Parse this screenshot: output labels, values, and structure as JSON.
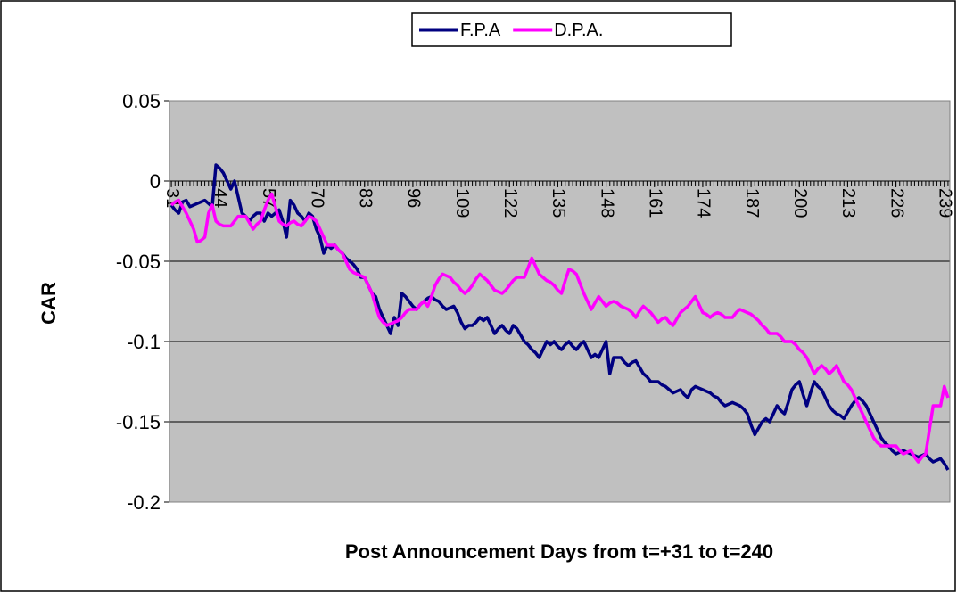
{
  "chart_data": {
    "type": "line",
    "xlabel": "Post Announcement Days from t=+31 to t=240",
    "ylabel": "CAR",
    "x": [
      31,
      32,
      33,
      34,
      35,
      36,
      37,
      38,
      39,
      40,
      41,
      42,
      43,
      44,
      45,
      46,
      47,
      48,
      49,
      50,
      51,
      52,
      53,
      54,
      55,
      56,
      57,
      58,
      59,
      60,
      61,
      62,
      63,
      64,
      65,
      66,
      67,
      68,
      69,
      70,
      71,
      72,
      73,
      74,
      75,
      76,
      77,
      78,
      79,
      80,
      81,
      82,
      83,
      84,
      85,
      86,
      87,
      88,
      89,
      90,
      91,
      92,
      93,
      94,
      95,
      96,
      97,
      98,
      99,
      100,
      101,
      102,
      103,
      104,
      105,
      106,
      107,
      108,
      109,
      110,
      111,
      112,
      113,
      114,
      115,
      116,
      117,
      118,
      119,
      120,
      121,
      122,
      123,
      124,
      125,
      126,
      127,
      128,
      129,
      130,
      131,
      132,
      133,
      134,
      135,
      136,
      137,
      138,
      139,
      140,
      141,
      142,
      143,
      144,
      145,
      146,
      147,
      148,
      149,
      150,
      151,
      152,
      153,
      154,
      155,
      156,
      157,
      158,
      159,
      160,
      161,
      162,
      163,
      164,
      165,
      166,
      167,
      168,
      169,
      170,
      171,
      172,
      173,
      174,
      175,
      176,
      177,
      178,
      179,
      180,
      181,
      182,
      183,
      184,
      185,
      186,
      187,
      188,
      189,
      190,
      191,
      192,
      193,
      194,
      195,
      196,
      197,
      198,
      199,
      200,
      201,
      202,
      203,
      204,
      205,
      206,
      207,
      208,
      209,
      210,
      211,
      212,
      213,
      214,
      215,
      216,
      217,
      218,
      219,
      220,
      221,
      222,
      223,
      224,
      225,
      226,
      227,
      228,
      229,
      230,
      231,
      232,
      233,
      234,
      235,
      236,
      237,
      238,
      239,
      240
    ],
    "series": [
      {
        "name": "F.P.A",
        "color": "#000080",
        "values": [
          -0.015,
          -0.018,
          -0.02,
          -0.013,
          -0.012,
          -0.016,
          -0.015,
          -0.014,
          -0.013,
          -0.012,
          -0.014,
          -0.016,
          0.01,
          0.008,
          0.005,
          0.0,
          -0.005,
          0.0,
          -0.01,
          -0.02,
          -0.022,
          -0.025,
          -0.022,
          -0.02,
          -0.02,
          -0.025,
          -0.02,
          -0.022,
          -0.02,
          -0.018,
          -0.025,
          -0.035,
          -0.012,
          -0.015,
          -0.02,
          -0.022,
          -0.025,
          -0.02,
          -0.022,
          -0.03,
          -0.035,
          -0.045,
          -0.04,
          -0.042,
          -0.04,
          -0.043,
          -0.045,
          -0.048,
          -0.05,
          -0.052,
          -0.055,
          -0.06,
          -0.06,
          -0.065,
          -0.07,
          -0.072,
          -0.08,
          -0.085,
          -0.09,
          -0.095,
          -0.085,
          -0.09,
          -0.07,
          -0.072,
          -0.075,
          -0.078,
          -0.08,
          -0.077,
          -0.075,
          -0.073,
          -0.072,
          -0.074,
          -0.075,
          -0.078,
          -0.08,
          -0.079,
          -0.078,
          -0.082,
          -0.088,
          -0.092,
          -0.09,
          -0.09,
          -0.088,
          -0.085,
          -0.087,
          -0.085,
          -0.09,
          -0.095,
          -0.092,
          -0.09,
          -0.093,
          -0.095,
          -0.09,
          -0.092,
          -0.096,
          -0.1,
          -0.102,
          -0.105,
          -0.107,
          -0.11,
          -0.105,
          -0.1,
          -0.102,
          -0.1,
          -0.103,
          -0.105,
          -0.102,
          -0.1,
          -0.103,
          -0.105,
          -0.102,
          -0.1,
          -0.105,
          -0.11,
          -0.108,
          -0.11,
          -0.105,
          -0.1,
          -0.12,
          -0.11,
          -0.11,
          -0.11,
          -0.113,
          -0.115,
          -0.113,
          -0.112,
          -0.116,
          -0.12,
          -0.122,
          -0.125,
          -0.125,
          -0.125,
          -0.127,
          -0.128,
          -0.13,
          -0.132,
          -0.131,
          -0.13,
          -0.133,
          -0.135,
          -0.13,
          -0.128,
          -0.129,
          -0.13,
          -0.131,
          -0.132,
          -0.134,
          -0.135,
          -0.138,
          -0.14,
          -0.139,
          -0.138,
          -0.139,
          -0.14,
          -0.142,
          -0.145,
          -0.152,
          -0.158,
          -0.154,
          -0.15,
          -0.148,
          -0.15,
          -0.145,
          -0.14,
          -0.143,
          -0.145,
          -0.138,
          -0.13,
          -0.127,
          -0.125,
          -0.133,
          -0.14,
          -0.132,
          -0.125,
          -0.128,
          -0.13,
          -0.135,
          -0.14,
          -0.143,
          -0.145,
          -0.146,
          -0.148,
          -0.144,
          -0.14,
          -0.137,
          -0.135,
          -0.137,
          -0.14,
          -0.145,
          -0.15,
          -0.155,
          -0.16,
          -0.163,
          -0.165,
          -0.168,
          -0.17,
          -0.169,
          -0.168,
          -0.169,
          -0.17,
          -0.171,
          -0.172,
          -0.171,
          -0.17,
          -0.173,
          -0.175,
          -0.174,
          -0.173,
          -0.176,
          -0.18
        ]
      },
      {
        "name": "D.P.A.",
        "color": "#ff00ff",
        "values": [
          -0.015,
          -0.013,
          -0.012,
          -0.016,
          -0.02,
          -0.025,
          -0.03,
          -0.038,
          -0.037,
          -0.035,
          -0.02,
          -0.015,
          -0.025,
          -0.027,
          -0.028,
          -0.028,
          -0.028,
          -0.025,
          -0.022,
          -0.022,
          -0.022,
          -0.026,
          -0.03,
          -0.027,
          -0.025,
          -0.018,
          -0.012,
          -0.008,
          -0.016,
          -0.025,
          -0.027,
          -0.028,
          -0.026,
          -0.025,
          -0.027,
          -0.028,
          -0.025,
          -0.022,
          -0.023,
          -0.025,
          -0.03,
          -0.035,
          -0.04,
          -0.04,
          -0.04,
          -0.043,
          -0.045,
          -0.05,
          -0.055,
          -0.057,
          -0.058,
          -0.059,
          -0.06,
          -0.065,
          -0.07,
          -0.078,
          -0.085,
          -0.088,
          -0.09,
          -0.089,
          -0.088,
          -0.087,
          -0.085,
          -0.082,
          -0.08,
          -0.08,
          -0.08,
          -0.077,
          -0.075,
          -0.078,
          -0.072,
          -0.065,
          -0.061,
          -0.058,
          -0.059,
          -0.06,
          -0.063,
          -0.065,
          -0.068,
          -0.07,
          -0.068,
          -0.065,
          -0.061,
          -0.058,
          -0.06,
          -0.062,
          -0.065,
          -0.068,
          -0.069,
          -0.07,
          -0.068,
          -0.065,
          -0.062,
          -0.06,
          -0.06,
          -0.06,
          -0.054,
          -0.048,
          -0.053,
          -0.058,
          -0.06,
          -0.062,
          -0.063,
          -0.065,
          -0.068,
          -0.07,
          -0.062,
          -0.055,
          -0.056,
          -0.058,
          -0.064,
          -0.07,
          -0.075,
          -0.08,
          -0.076,
          -0.072,
          -0.075,
          -0.078,
          -0.076,
          -0.075,
          -0.076,
          -0.078,
          -0.079,
          -0.08,
          -0.082,
          -0.085,
          -0.081,
          -0.078,
          -0.08,
          -0.082,
          -0.085,
          -0.088,
          -0.086,
          -0.085,
          -0.088,
          -0.09,
          -0.086,
          -0.082,
          -0.08,
          -0.078,
          -0.075,
          -0.072,
          -0.077,
          -0.082,
          -0.083,
          -0.085,
          -0.083,
          -0.082,
          -0.083,
          -0.085,
          -0.085,
          -0.085,
          -0.082,
          -0.08,
          -0.081,
          -0.082,
          -0.083,
          -0.085,
          -0.087,
          -0.09,
          -0.092,
          -0.095,
          -0.095,
          -0.095,
          -0.097,
          -0.1,
          -0.1,
          -0.1,
          -0.102,
          -0.105,
          -0.107,
          -0.11,
          -0.115,
          -0.12,
          -0.117,
          -0.115,
          -0.117,
          -0.12,
          -0.118,
          -0.115,
          -0.12,
          -0.125,
          -0.127,
          -0.13,
          -0.135,
          -0.14,
          -0.145,
          -0.15,
          -0.155,
          -0.16,
          -0.163,
          -0.165,
          -0.165,
          -0.165,
          -0.165,
          -0.165,
          -0.168,
          -0.17,
          -0.169,
          -0.168,
          -0.172,
          -0.175,
          -0.172,
          -0.17,
          -0.155,
          -0.14,
          -0.14,
          -0.14,
          -0.128,
          -0.135
        ]
      }
    ],
    "xlim": [
      30.5,
      240.5
    ],
    "xticks": [
      31,
      44,
      57,
      70,
      83,
      96,
      109,
      122,
      135,
      148,
      161,
      174,
      187,
      200,
      213,
      226,
      239
    ],
    "ylim": [
      -0.2,
      0.05
    ],
    "yticks": [
      0.05,
      0,
      -0.05,
      -0.1,
      -0.15,
      -0.2
    ],
    "grid": true,
    "legend": "top",
    "plot_background": "#c0c0c0"
  }
}
